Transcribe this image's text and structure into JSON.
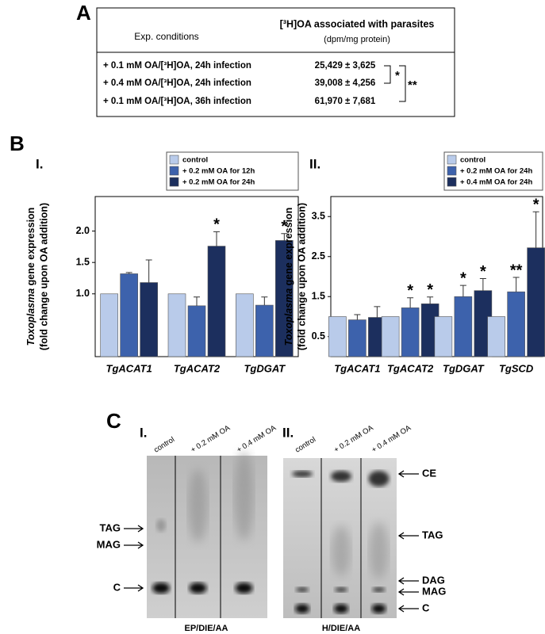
{
  "panels": {
    "a": "A",
    "b": "B",
    "c": "C"
  },
  "table": {
    "header": [
      "Exp. conditions",
      "[³H]OA associated with parasites",
      "(dpm/mg protein)"
    ],
    "rows": [
      [
        "+ 0.1 mM OA/[³H]OA, 24h infection",
        "25,429 ± 3,625"
      ],
      [
        "+ 0.4 mM OA/[³H]OA, 24h infection",
        "39,008 ± 4,256"
      ],
      [
        "+ 0.1 mM OA/[³H]OA, 36h infection",
        "61,970 ± 7,681"
      ]
    ],
    "brackets": [
      "*",
      "**"
    ]
  },
  "chart_data": [
    {
      "type": "bar",
      "title": "I.",
      "ylabel": [
        "Toxoplasma",
        "gene expression",
        "(fold change upon OA addition)"
      ],
      "categories": [
        "TgACAT1",
        "TgACAT2",
        "TgDGAT"
      ],
      "series": [
        {
          "name": "control",
          "color": "#b9cbea",
          "values": [
            1.0,
            1.0,
            1.0
          ],
          "errors": [
            0,
            0,
            0
          ],
          "significance": [
            null,
            null,
            null
          ]
        },
        {
          "name": "+ 0.2 mM OA for 12h",
          "color": "#3d62ac",
          "values": [
            1.32,
            0.81,
            0.82
          ],
          "errors": [
            0.02,
            0.14,
            0.13
          ],
          "significance": [
            null,
            null,
            null
          ]
        },
        {
          "name": "+ 0.2 mM OA for 24h",
          "color": "#1c2f5e",
          "values": [
            1.18,
            1.76,
            1.85
          ],
          "errors": [
            0.36,
            0.23,
            0.11
          ],
          "significance": [
            null,
            "*",
            "*"
          ]
        }
      ],
      "ylim": [
        0,
        2.55
      ],
      "yticks": [
        {
          "value": 1,
          "label": "1.0"
        },
        1.5,
        {
          "value": 2,
          "label": "2.0"
        }
      ],
      "legend": "upper right"
    },
    {
      "type": "bar",
      "title": "II.",
      "ylabel": [
        "Toxoplasma",
        "gene expression",
        "(fold change upon OA addition)"
      ],
      "categories": [
        "TgACAT1",
        "TgACAT2",
        "TgDGAT",
        "TgSCD"
      ],
      "series": [
        {
          "name": "control",
          "color": "#b9cbea",
          "values": [
            1.0,
            1.0,
            1.0,
            1.0
          ],
          "errors": [
            0,
            0,
            0,
            0
          ],
          "significance": [
            null,
            null,
            null,
            null
          ]
        },
        {
          "name": "+ 0.2 mM OA for 24h",
          "color": "#3d62ac",
          "values": [
            0.92,
            1.22,
            1.5,
            1.62
          ],
          "errors": [
            0.13,
            0.25,
            0.28,
            0.36
          ],
          "significance": [
            null,
            "*",
            "*",
            "**"
          ]
        },
        {
          "name": "+ 0.4 mM OA for 24h",
          "color": "#1c2f5e",
          "values": [
            0.98,
            1.32,
            1.65,
            2.72
          ],
          "errors": [
            0.27,
            0.17,
            0.3,
            0.9
          ],
          "significance": [
            null,
            "*",
            "*",
            "*"
          ]
        }
      ],
      "ylim": [
        0,
        4
      ],
      "yticks": [
        0.5,
        1.5,
        2.5,
        3.5
      ],
      "legend": "upper right"
    }
  ],
  "tlc": [
    {
      "title": "I.",
      "lanes": [
        "control",
        "+ 0.2 mM OA",
        "+ 0.4 mM OA"
      ],
      "bands": [
        "TAG",
        "MAG",
        "C"
      ],
      "solvent": "EP/DIE/AA"
    },
    {
      "title": "II.",
      "lanes": [
        "control",
        "+ 0.2 mM OA",
        "+ 0.4 mM OA"
      ],
      "bands": [
        "CE",
        "TAG",
        "DAG",
        "MAG",
        "C"
      ],
      "solvent": "H/DIE/AA"
    }
  ]
}
